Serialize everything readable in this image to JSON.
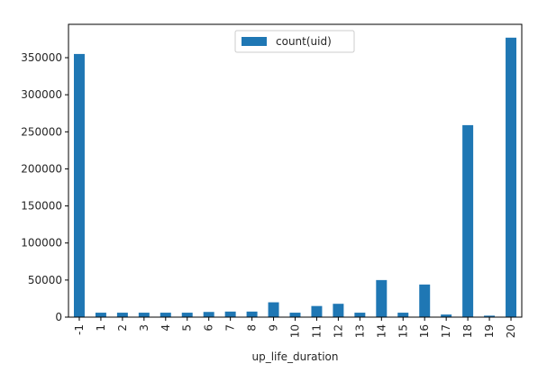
{
  "chart_data": {
    "type": "bar",
    "title": "",
    "xlabel": "up_life_duration",
    "ylabel": "",
    "categories": [
      "-1",
      "1",
      "2",
      "3",
      "4",
      "5",
      "6",
      "7",
      "8",
      "9",
      "10",
      "11",
      "12",
      "13",
      "14",
      "15",
      "16",
      "17",
      "18",
      "19",
      "20"
    ],
    "series": [
      {
        "name": "count(uid)",
        "color": "#1f77b4",
        "values": [
          355000,
          6000,
          6000,
          6000,
          6000,
          6000,
          7000,
          7500,
          7500,
          20000,
          6000,
          15000,
          18000,
          6000,
          50000,
          6000,
          44000,
          3500,
          259000,
          2000,
          377000
        ]
      }
    ],
    "ylim": [
      0,
      395000
    ],
    "yticks": [
      0,
      50000,
      100000,
      150000,
      200000,
      250000,
      300000,
      350000
    ],
    "ytick_labels": [
      "0",
      "50000",
      "100000",
      "150000",
      "200000",
      "250000",
      "300000",
      "350000"
    ],
    "legend_position": "upper center",
    "grid": false
  }
}
